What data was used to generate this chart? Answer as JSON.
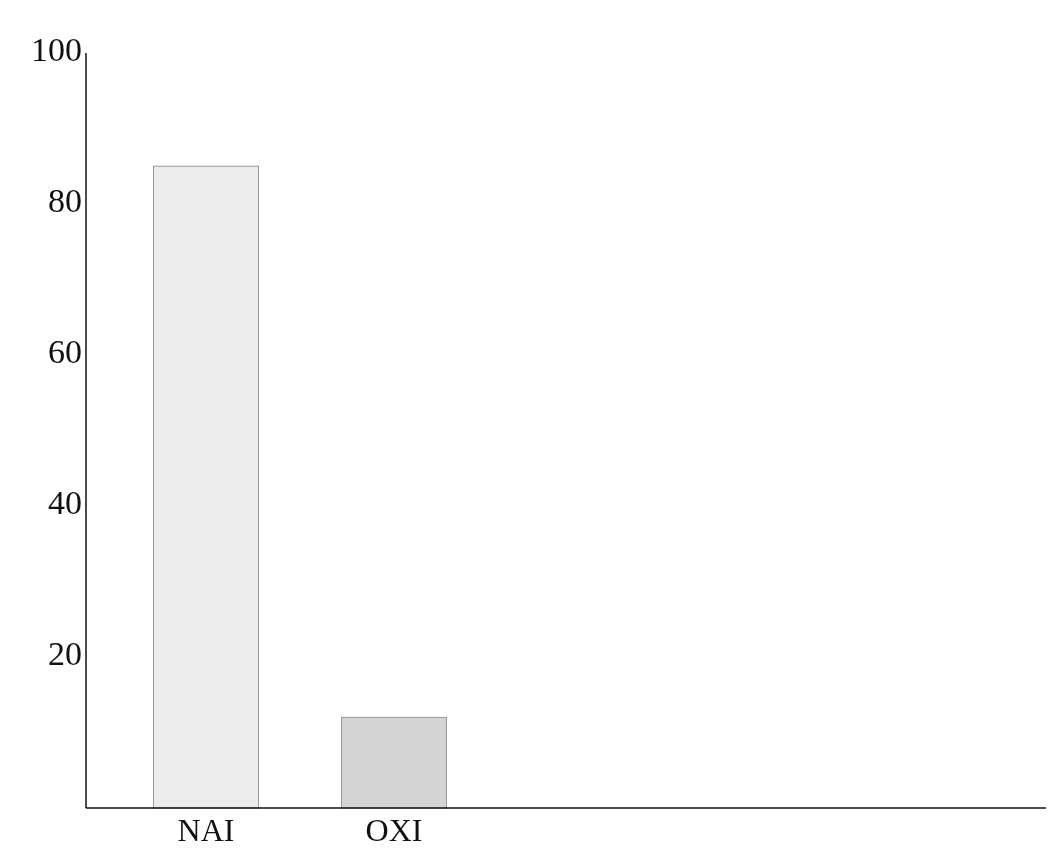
{
  "chart_data": {
    "type": "bar",
    "categories": [
      "NAI",
      "OXI"
    ],
    "values": [
      85,
      12
    ],
    "colors": [
      "#ececec",
      "#d4d4d4"
    ],
    "ylim": [
      0,
      100
    ],
    "yticks": [
      20,
      40,
      60,
      80,
      100
    ],
    "grid": false
  }
}
